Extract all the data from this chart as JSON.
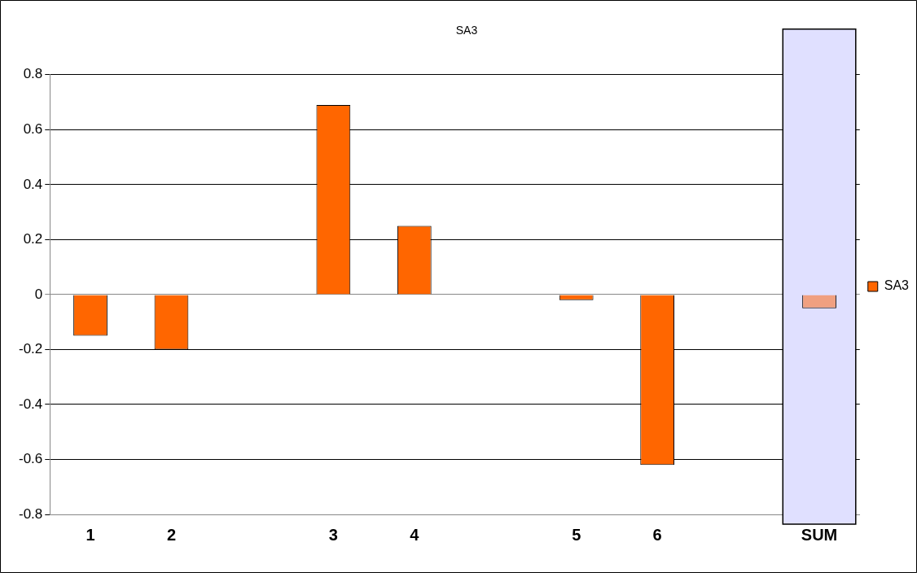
{
  "chart_data": {
    "type": "bar",
    "title": "SA3",
    "categories": [
      "1",
      "2",
      null,
      "3",
      "4",
      null,
      "5",
      "6",
      null,
      "SUM"
    ],
    "series": [
      {
        "name": "SA3",
        "color": "#ff6600",
        "colors": [
          "#ff6600",
          "#ff6600",
          "#ff6600",
          "#ff6600",
          "#ff6600",
          "#ff6600",
          "#ff6600",
          "#ff6600",
          "#ff6600",
          "#f0a080"
        ],
        "values": [
          -0.15,
          -0.2,
          null,
          0.69,
          0.25,
          null,
          -0.02,
          -0.62,
          null,
          -0.05
        ]
      }
    ],
    "ylim": [
      -0.8,
      0.8
    ],
    "yticks": [
      -0.8,
      -0.6,
      -0.4,
      -0.2,
      0,
      0.2,
      0.4,
      0.6,
      0.8
    ],
    "bands": [
      {
        "axis": "x",
        "from": "SUM",
        "to": "SUM",
        "color": "#e0e0ff"
      }
    ],
    "grid": "y",
    "legend": "right"
  }
}
